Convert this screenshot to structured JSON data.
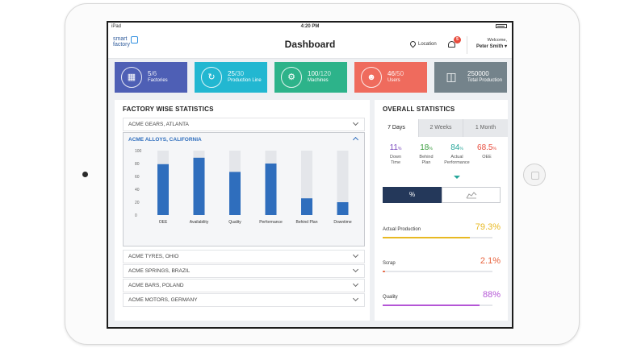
{
  "status": {
    "carrier": "iPad",
    "time": "4:20 PM"
  },
  "header": {
    "logo_line1": "smart",
    "logo_line2": "factory",
    "title": "Dashboard",
    "location_label": "Location",
    "notification_count": "5",
    "welcome": "Welcome,",
    "user_name": "Peter Smith"
  },
  "cards": [
    {
      "value": "5",
      "total": "/6",
      "label": "Factories",
      "color": "#4e5fb5",
      "icon": "factory-icon"
    },
    {
      "value": "25",
      "total": "/30",
      "label": "Production Line",
      "color": "#22b7d1",
      "icon": "production-line-icon"
    },
    {
      "value": "100",
      "total": "/120",
      "label": "Machines",
      "color": "#2db38a",
      "icon": "machines-icon"
    },
    {
      "value": "46",
      "total": "/50",
      "label": "Users",
      "color": "#ef6b5d",
      "icon": "users-icon"
    },
    {
      "value": "250000",
      "total": "",
      "label": "Total Production",
      "color": "#74838b",
      "icon": "total-production-icon"
    }
  ],
  "factory": {
    "title": "FACTORY WISE STATISTICS",
    "rows_before": [
      "ACME GEARS, ATLANTA"
    ],
    "open_row": "ACME ALLOYS, CALIFORNIA",
    "rows_after": [
      "ACME TYRES, OHIO",
      "ACME SPRINGS, BRAZIL",
      "ACME BARS, POLAND",
      "ACME MOTORS, GERMANY"
    ]
  },
  "chart_data": {
    "type": "bar",
    "categories": [
      "OEE",
      "Availability",
      "Quality",
      "Performance",
      "Behind Plan",
      "Downtime"
    ],
    "values": [
      79,
      89,
      67,
      80,
      26,
      20
    ],
    "ylim": [
      0,
      100
    ],
    "yticks": [
      "0",
      "20",
      "40",
      "60",
      "80",
      "100"
    ],
    "bar_color": "#2f6ebd",
    "bg_color": "#e4e6ea"
  },
  "overall": {
    "title": "OVERALL STATISTICS",
    "tabs": [
      "7 Days",
      "2 Weeks",
      "1 Month"
    ],
    "stats": [
      {
        "value": "11",
        "unit": "%",
        "label1": "Down",
        "label2": "Time",
        "color": "#7c4dbf"
      },
      {
        "value": "18",
        "unit": "%",
        "label1": "Behind",
        "label2": "Plan",
        "color": "#3a9d3f"
      },
      {
        "value": "84",
        "unit": "%",
        "label1": "Actual",
        "label2": "Performance",
        "color": "#26a69a"
      },
      {
        "value": "68.5",
        "unit": "%",
        "label1": "OEE",
        "label2": "",
        "color": "#e84c3d"
      }
    ],
    "toggle_percent": "%",
    "metrics": [
      {
        "label": "Actual Production",
        "value": "79.3%",
        "fill": 0.793,
        "color": "#e8b923"
      },
      {
        "label": "Scrap",
        "value": "2.1%",
        "fill": 0.021,
        "color": "#e8633d"
      },
      {
        "label": "Quality",
        "value": "88%",
        "fill": 0.88,
        "color": "#b456d6"
      }
    ]
  }
}
